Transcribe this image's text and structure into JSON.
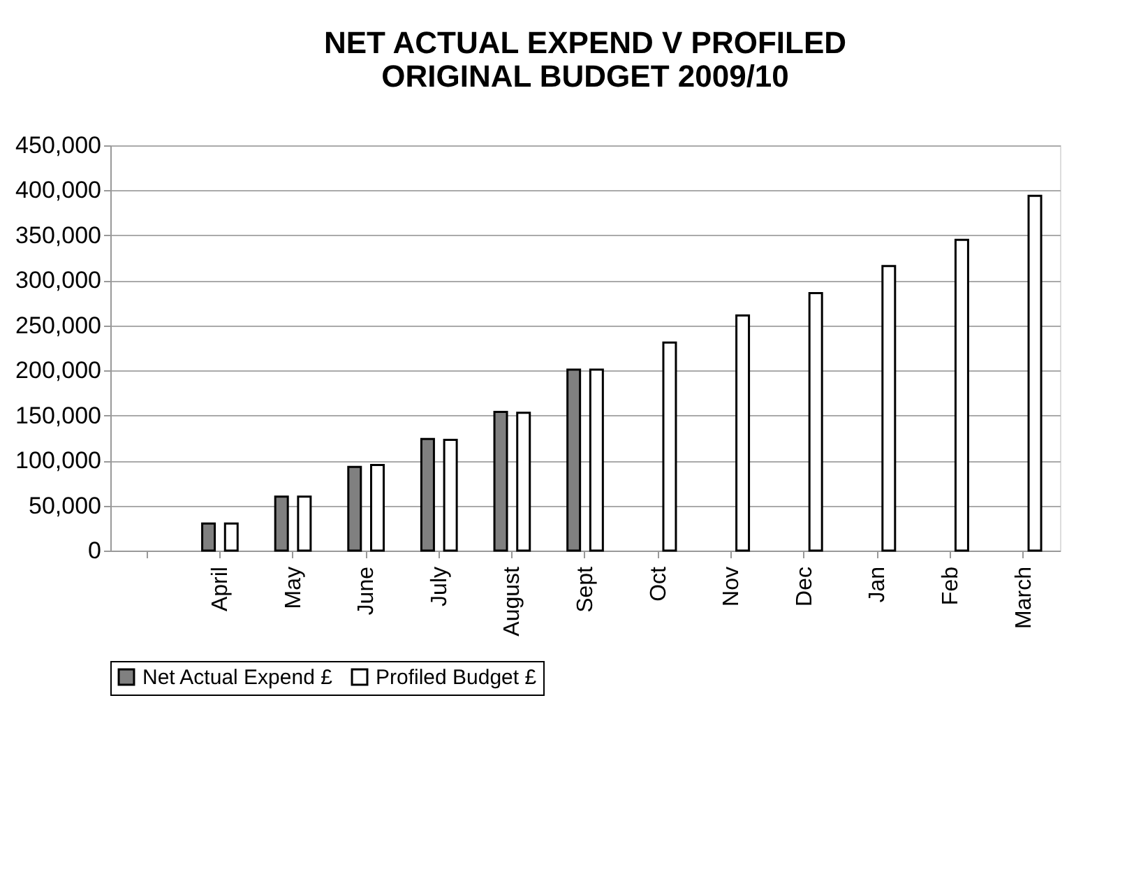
{
  "chart_data": {
    "type": "bar",
    "title": "NET ACTUAL EXPEND V PROFILED\nORIGINAL  BUDGET 2009/10",
    "categories": [
      null,
      "April",
      "May",
      "June",
      "July",
      "August",
      "Sept",
      "Oct",
      "Nov",
      "Dec",
      "Jan",
      "Feb",
      "March"
    ],
    "series": [
      {
        "name": "Net Actual Expend £",
        "color": "#808080",
        "values": [
          null,
          30000,
          60000,
          93000,
          124000,
          154000,
          201000,
          null,
          null,
          null,
          null,
          null,
          null
        ]
      },
      {
        "name": "Profiled Budget £",
        "color": "#ffffff",
        "values": [
          null,
          30000,
          60000,
          95000,
          123000,
          153000,
          201000,
          231000,
          261000,
          286000,
          316000,
          345000,
          394000
        ]
      }
    ],
    "ylim": [
      0,
      450000
    ],
    "yticks": [
      0,
      {
        "value": 50000,
        "label": "50,000"
      },
      {
        "value": 100000,
        "label": "100,000"
      },
      {
        "value": 150000,
        "label": "150,000"
      },
      {
        "value": 200000,
        "label": "200,000"
      },
      {
        "value": 250000,
        "label": "250,000"
      },
      {
        "value": 300000,
        "label": "300,000"
      },
      {
        "value": 350000,
        "label": "350,000"
      },
      {
        "value": 400000,
        "label": "400,000"
      },
      {
        "value": 450000,
        "label": "450,000"
      }
    ],
    "grid": "y",
    "legend": "bottom"
  }
}
